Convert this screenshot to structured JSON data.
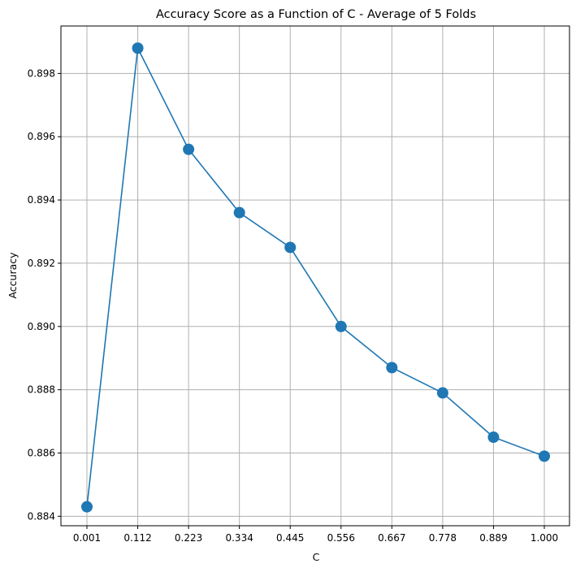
{
  "chart_data": {
    "type": "line",
    "title": "Accuracy Score as a Function of C - Average of 5 Folds",
    "xlabel": "C",
    "ylabel": "Accuracy",
    "x_tick_labels": [
      "0.001",
      "0.112",
      "0.223",
      "0.334",
      "0.445",
      "0.556",
      "0.667",
      "0.778",
      "0.889",
      "1.000"
    ],
    "y_tick_labels": [
      "0.884",
      "0.886",
      "0.888",
      "0.890",
      "0.892",
      "0.894",
      "0.896",
      "0.898"
    ],
    "y_ticks": [
      0.884,
      0.886,
      0.888,
      0.89,
      0.892,
      0.894,
      0.896,
      0.898
    ],
    "ylim": [
      0.8837,
      0.8995
    ],
    "grid": true,
    "series": [
      {
        "x": [
          0.001,
          0.112,
          0.223,
          0.334,
          0.445,
          0.556,
          0.667,
          0.778,
          0.889,
          1.0
        ],
        "values": [
          0.8843,
          0.8988,
          0.8956,
          0.8936,
          0.8925,
          0.89,
          0.8887,
          0.8879,
          0.8865,
          0.8859
        ],
        "color": "#1f77b4"
      }
    ]
  }
}
